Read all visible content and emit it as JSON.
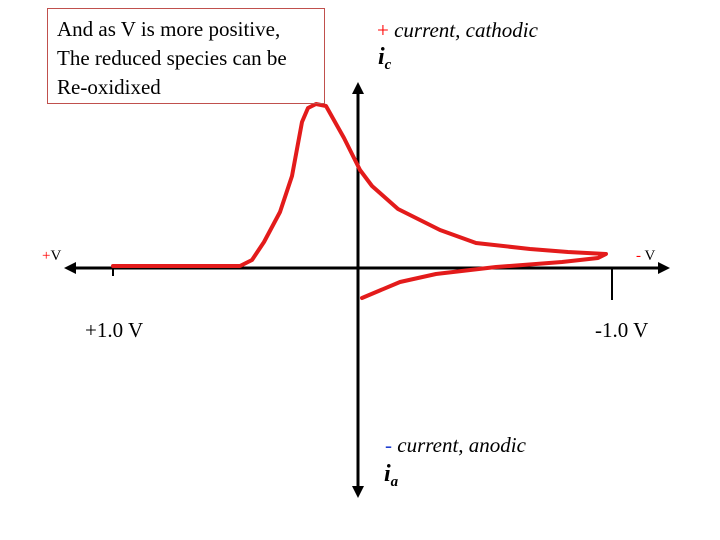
{
  "callout": {
    "lines": [
      "And as V is more positive,",
      "The reduced species can be",
      "Re-oxidixed"
    ]
  },
  "axes": {
    "cathodic_sign": "+",
    "cathodic_text": "current, cathodic",
    "cathodic_symbol": "i",
    "cathodic_subscript": "c",
    "anodic_sign": "-",
    "anodic_text": "current, anodic",
    "anodic_symbol": "i",
    "anodic_subscript": "a",
    "left_end_sign": "+",
    "left_end_label": "V",
    "right_end_sign": "-",
    "right_end_label": "V",
    "left_value": "+1.0 V",
    "right_value": "-1.0 V"
  },
  "colors": {
    "curve": "#e31b1b",
    "axis": "#000000",
    "callout_border": "#c0504d",
    "sign_red": "#ff0000",
    "sign_blue": "#1f3fd0"
  }
}
